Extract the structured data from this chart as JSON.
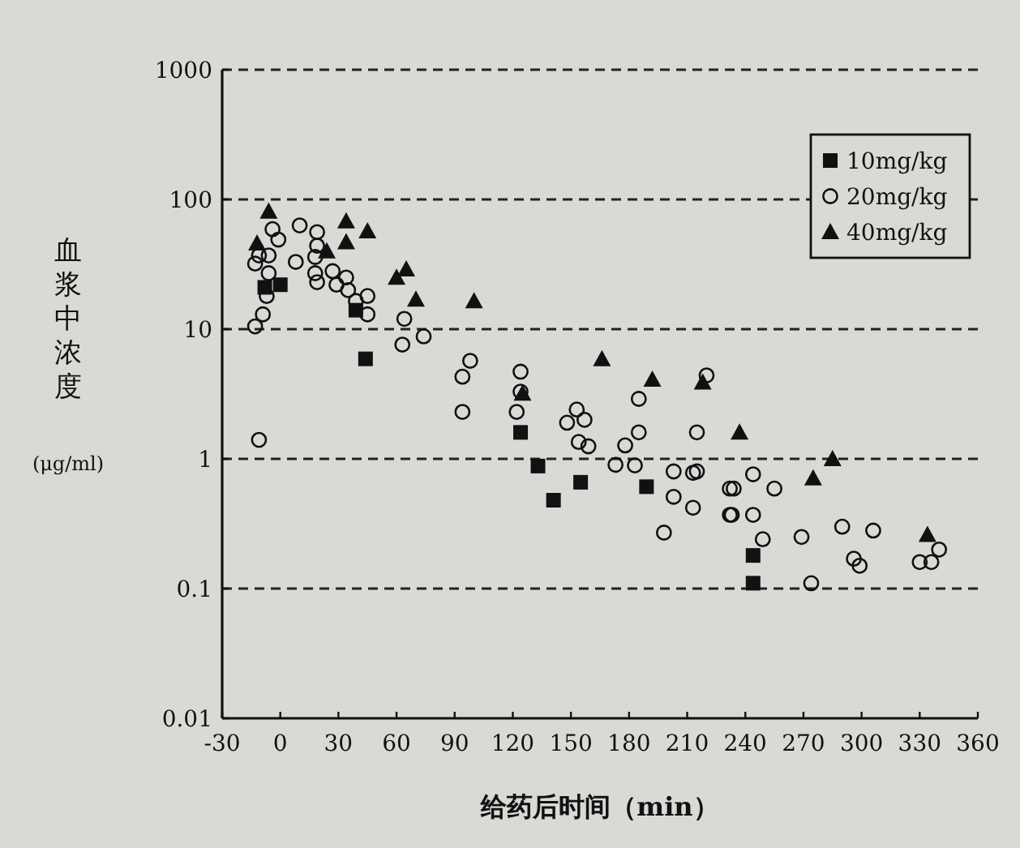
{
  "chart_data": {
    "type": "scatter",
    "xlabel": "给药后时间（min）",
    "ylabel": "血浆中浓度 (μg/ml)",
    "log": "y",
    "xlim": [
      -30,
      360
    ],
    "xticks": [
      -30,
      0,
      30,
      60,
      90,
      120,
      150,
      180,
      210,
      240,
      270,
      300,
      330,
      360
    ],
    "ylim": [
      0.01,
      1000
    ],
    "yticks": [
      0.01,
      0.1,
      1,
      10,
      100,
      1000
    ],
    "grid": "y",
    "legend": "top right",
    "series": [
      {
        "name": "10mg/kg",
        "color": "#111111",
        "marker": "square",
        "x": [
          -8,
          0,
          39,
          44,
          124,
          133,
          141,
          155,
          189,
          244,
          244
        ],
        "values": [
          21,
          22,
          14,
          5.9,
          1.6,
          0.88,
          0.48,
          0.66,
          0.61,
          0.18,
          0.11
        ]
      },
      {
        "name": "20mg/kg",
        "color": "#111111",
        "marker": "circle",
        "x": [
          -4,
          -1,
          -11,
          -6,
          -13,
          -6,
          -7,
          -9,
          -13,
          -11,
          10,
          8,
          19,
          19,
          18,
          18,
          19,
          27,
          29,
          34,
          35,
          39,
          45,
          45,
          64,
          63,
          74,
          98,
          94,
          94,
          124,
          124,
          122,
          153,
          148,
          157,
          154,
          159,
          185,
          185,
          178,
          173,
          183,
          203,
          203,
          213,
          215,
          213,
          198,
          215,
          220,
          232,
          232,
          244,
          234,
          255,
          233,
          244,
          249,
          269,
          290,
          306,
          296,
          299,
          274,
          330,
          336,
          340
        ],
        "values": [
          59,
          49,
          37,
          37,
          32,
          27,
          18,
          13,
          10.5,
          1.4,
          63,
          33,
          56,
          44,
          36,
          27,
          23,
          28,
          22,
          25,
          20,
          16.5,
          18,
          13,
          12,
          7.6,
          8.8,
          5.7,
          4.3,
          2.3,
          4.7,
          3.3,
          2.3,
          2.4,
          1.9,
          2.0,
          1.35,
          1.25,
          2.9,
          1.6,
          1.27,
          0.9,
          0.89,
          0.8,
          0.51,
          0.78,
          0.8,
          0.42,
          0.27,
          1.6,
          4.4,
          0.59,
          0.37,
          0.76,
          0.59,
          0.59,
          0.37,
          0.37,
          0.24,
          0.25,
          0.3,
          0.28,
          0.17,
          0.15,
          0.11,
          0.16,
          0.16,
          0.2
        ]
      },
      {
        "name": "40mg/kg",
        "color": "#111111",
        "marker": "triangle",
        "x": [
          -6,
          -12,
          34,
          45,
          34,
          24,
          60,
          65,
          70,
          100,
          125,
          166,
          192,
          218,
          237,
          285,
          275,
          334
        ],
        "values": [
          81,
          46,
          68,
          57,
          47,
          40,
          25,
          29,
          17,
          16.5,
          3.2,
          5.9,
          4.1,
          3.9,
          1.6,
          1.0,
          0.71,
          0.26
        ]
      }
    ]
  }
}
